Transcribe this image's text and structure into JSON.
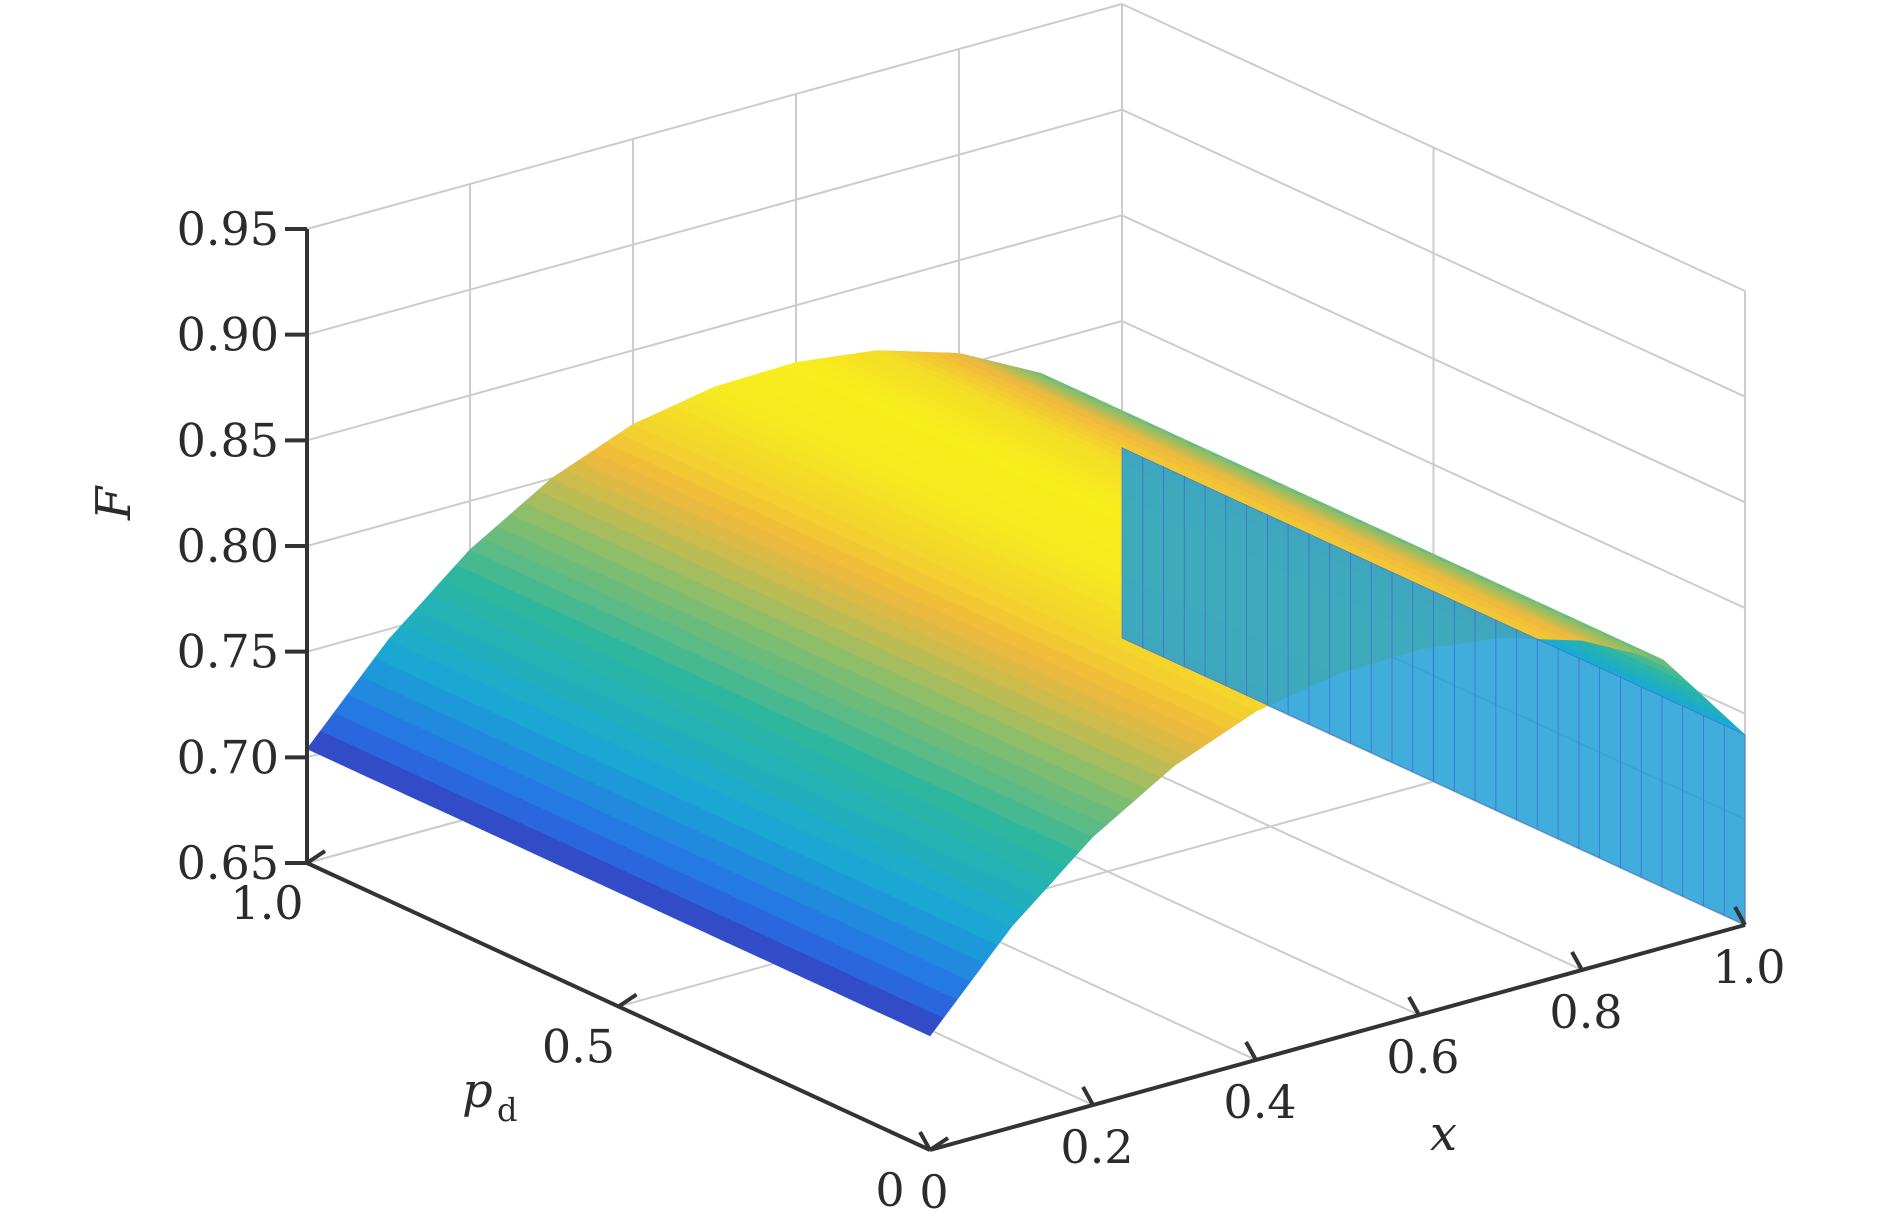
{
  "chart_data": {
    "type": "surface",
    "title": "",
    "xlabel": "x",
    "ylabel_main": "p",
    "ylabel_sub": "d",
    "zlabel": "F",
    "xlim": [
      0,
      1.0
    ],
    "ylim": [
      0,
      1.0
    ],
    "zlim": [
      0.65,
      0.95
    ],
    "x_ticks": [
      "0",
      "0.2",
      "0.4",
      "0.6",
      "0.8",
      "1.0"
    ],
    "x_tick_values": [
      0,
      0.2,
      0.4,
      0.6,
      0.8,
      1.0
    ],
    "y_ticks": [
      "0",
      "0.5",
      "1.0"
    ],
    "y_tick_values": [
      0,
      0.5,
      1.0
    ],
    "z_ticks": [
      "0.65",
      "0.70",
      "0.75",
      "0.80",
      "0.85",
      "0.90",
      "0.95"
    ],
    "z_tick_values": [
      0.65,
      0.7,
      0.75,
      0.8,
      0.85,
      0.9,
      0.95
    ],
    "grid": true,
    "colormap": "parula",
    "surface_samples": {
      "description_free": true,
      "x": [
        0,
        0.1,
        0.2,
        0.3,
        0.4,
        0.5,
        0.6,
        0.7,
        0.8,
        0.9,
        1.0
      ],
      "F_at_pd_1": [
        0.704,
        0.745,
        0.777,
        0.8,
        0.815,
        0.822,
        0.823,
        0.818,
        0.806,
        0.786,
        0.74
      ],
      "F_at_pd_0": [
        0.704,
        0.745,
        0.777,
        0.8,
        0.815,
        0.822,
        0.823,
        0.818,
        0.806,
        0.786,
        0.74
      ]
    }
  },
  "colors": {
    "axis": "#333333",
    "grid": "#cccccc",
    "parula_low": "#3e26a8",
    "parula_mid": "#2eb7a2",
    "parula_high": "#f9fb15"
  }
}
